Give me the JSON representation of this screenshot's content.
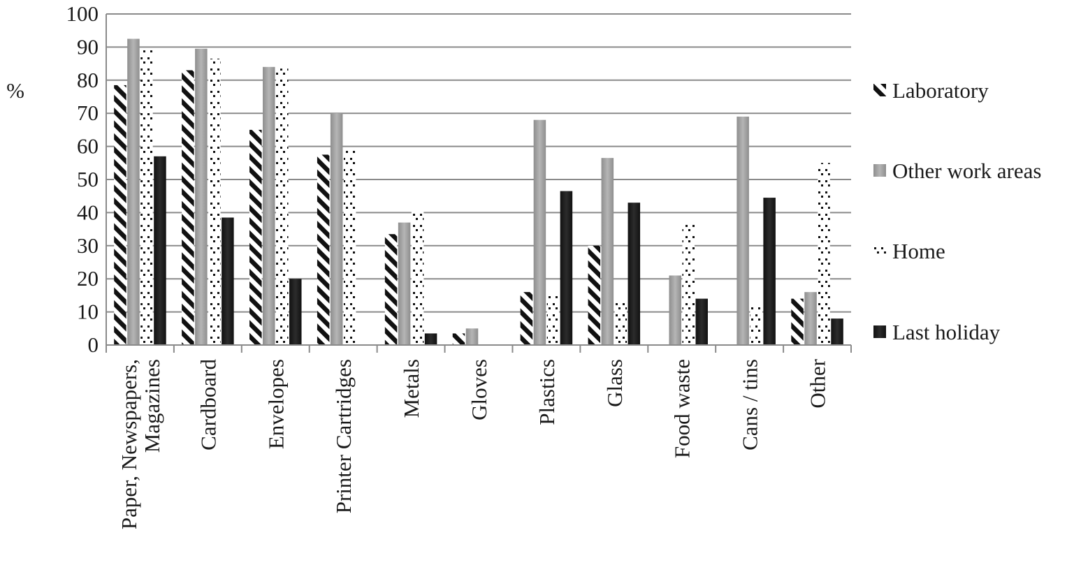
{
  "chart_data": {
    "type": "bar",
    "ylabel": "%",
    "xlabel": "",
    "title": "",
    "ylim": [
      0,
      100
    ],
    "yticks": [
      0,
      10,
      20,
      30,
      40,
      50,
      60,
      70,
      80,
      90,
      100
    ],
    "grid": true,
    "legend_position": "right",
    "categories": [
      [
        "Paper, Newspapers,",
        "Magazines"
      ],
      [
        "Cardboard"
      ],
      [
        "Envelopes"
      ],
      [
        "Printer Cartridges"
      ],
      [
        "Metals"
      ],
      [
        "Gloves"
      ],
      [
        "Plastics"
      ],
      [
        "Glass"
      ],
      [
        "Food waste"
      ],
      [
        "Cans / tins"
      ],
      [
        "Other"
      ]
    ],
    "series": [
      {
        "name": "Laboratory",
        "pattern": "diagonal-stripes",
        "color": "#111111",
        "values": [
          78.5,
          83,
          65,
          57.5,
          33.5,
          3.5,
          16,
          30,
          0,
          0,
          14
        ]
      },
      {
        "name": "Other work areas",
        "pattern": "solid-gradient",
        "color": "#9b9b9b",
        "values": [
          92.5,
          89.5,
          84,
          70,
          37,
          5,
          68,
          56.5,
          21,
          69,
          16
        ]
      },
      {
        "name": "Home",
        "pattern": "dotted",
        "color": "#111111",
        "values": [
          89,
          86.5,
          83.5,
          59,
          40.5,
          0,
          15,
          13.5,
          36.5,
          11.5,
          55
        ]
      },
      {
        "name": "Last holiday",
        "pattern": "solid",
        "color": "#1e1e1e",
        "values": [
          57,
          38.5,
          20,
          0,
          3.5,
          0,
          46.5,
          43,
          14,
          44.5,
          8
        ]
      }
    ]
  }
}
